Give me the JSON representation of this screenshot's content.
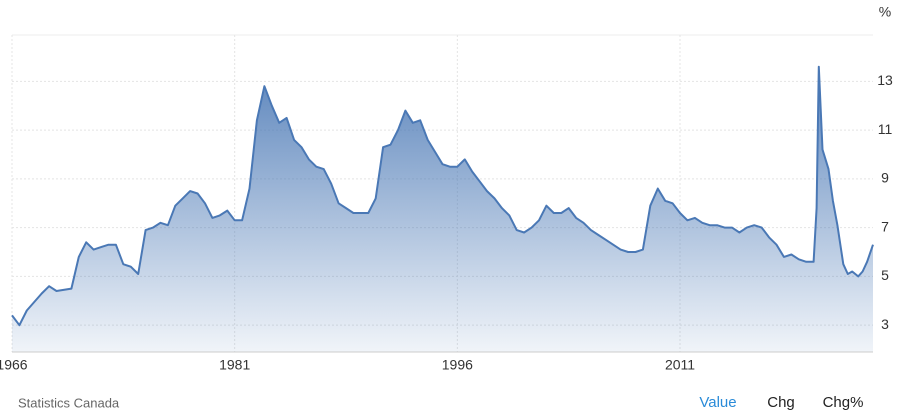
{
  "chart_data": {
    "type": "area",
    "unit": "%",
    "color": "#4a78b5",
    "x": [
      1966,
      1966.5,
      1967,
      1968,
      1968.5,
      1969,
      1970,
      1970.5,
      1971,
      1971.5,
      1972,
      1972.5,
      1973,
      1973.5,
      1974,
      1974.5,
      1975,
      1975.5,
      1976,
      1976.5,
      1977,
      1977.5,
      1978,
      1978.5,
      1979,
      1979.5,
      1980,
      1980.5,
      1981,
      1981.5,
      1982,
      1982.5,
      1983,
      1983.5,
      1984,
      1984.5,
      1985,
      1985.5,
      1986,
      1986.5,
      1987,
      1987.5,
      1988,
      1988.5,
      1989,
      1989.5,
      1990,
      1990.5,
      1991,
      1991.5,
      1992,
      1992.5,
      1993,
      1993.5,
      1994,
      1994.5,
      1995,
      1995.5,
      1996,
      1996.5,
      1997,
      1997.5,
      1998,
      1998.5,
      1999,
      1999.5,
      2000,
      2000.5,
      2001,
      2001.5,
      2002,
      2002.5,
      2003,
      2003.5,
      2004,
      2004.5,
      2005,
      2005.5,
      2006,
      2006.5,
      2007,
      2007.5,
      2008,
      2008.5,
      2009,
      2009.5,
      2010,
      2010.5,
      2011,
      2011.5,
      2012,
      2012.5,
      2013,
      2013.5,
      2014,
      2014.5,
      2015,
      2015.5,
      2016,
      2016.5,
      2017,
      2017.5,
      2018,
      2018.5,
      2019,
      2019.5,
      2020,
      2020.2,
      2020.35,
      2020.6,
      2021,
      2021.3,
      2021.6,
      2022,
      2022.3,
      2022.6,
      2023,
      2023.3,
      2023.6,
      2024
    ],
    "values": [
      3.4,
      3.0,
      3.6,
      4.3,
      4.6,
      4.4,
      4.5,
      5.8,
      6.4,
      6.1,
      6.2,
      6.3,
      6.3,
      5.5,
      5.4,
      5.1,
      6.9,
      7.0,
      7.2,
      7.1,
      7.9,
      8.2,
      8.5,
      8.4,
      8.0,
      7.4,
      7.5,
      7.7,
      7.3,
      7.3,
      8.6,
      11.4,
      12.8,
      12.0,
      11.3,
      11.5,
      10.6,
      10.3,
      9.8,
      9.5,
      9.4,
      8.8,
      8.0,
      7.8,
      7.6,
      7.6,
      7.6,
      8.2,
      10.3,
      10.4,
      11.0,
      11.8,
      11.3,
      11.4,
      10.6,
      10.1,
      9.6,
      9.5,
      9.5,
      9.8,
      9.3,
      8.9,
      8.5,
      8.2,
      7.8,
      7.5,
      6.9,
      6.8,
      7.0,
      7.3,
      7.9,
      7.6,
      7.6,
      7.8,
      7.4,
      7.2,
      6.9,
      6.7,
      6.5,
      6.3,
      6.1,
      6.0,
      6.0,
      6.1,
      7.9,
      8.6,
      8.1,
      8.0,
      7.6,
      7.3,
      7.4,
      7.2,
      7.1,
      7.1,
      7.0,
      7.0,
      6.8,
      7.0,
      7.1,
      7.0,
      6.6,
      6.3,
      5.8,
      5.9,
      5.7,
      5.6,
      5.6,
      7.8,
      13.6,
      10.2,
      9.4,
      8.1,
      7.1,
      5.5,
      5.1,
      5.2,
      5.0,
      5.2,
      5.6,
      6.3
    ],
    "xlim": [
      1966,
      2024
    ],
    "ylim": [
      1.9,
      14.9
    ],
    "xticks": [
      1966,
      1981,
      1996,
      2011
    ],
    "yticks": [
      3,
      5,
      7,
      9,
      11,
      13
    ],
    "grid": true
  },
  "source": "Statistics Canada",
  "controls": [
    "Value",
    "Chg",
    "Chg%"
  ]
}
